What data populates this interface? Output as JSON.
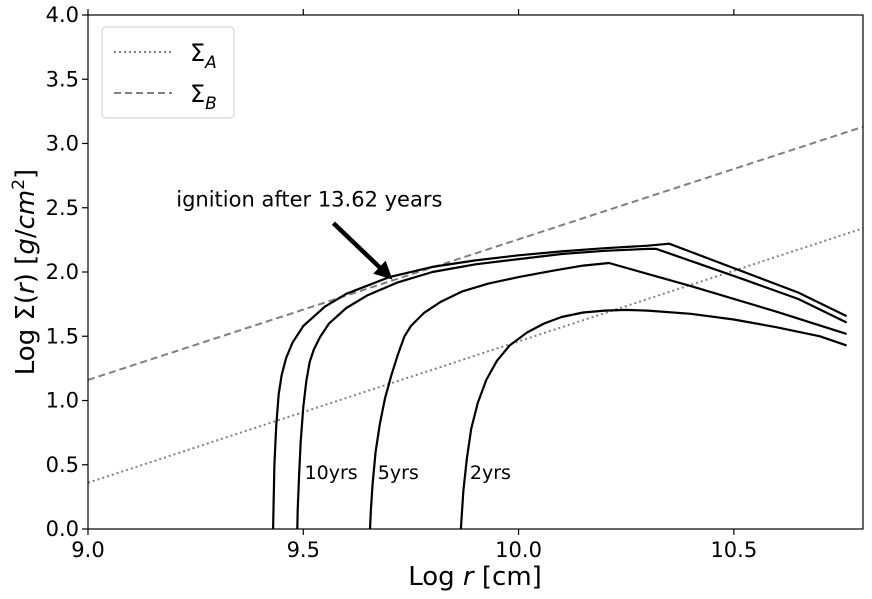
{
  "chart_data": {
    "type": "line",
    "xlabel": "Log r [cm]",
    "ylabel": "Log Σ(r) [g/cm²]",
    "xlim": [
      9.0,
      10.8
    ],
    "ylim": [
      0.0,
      4.0
    ],
    "x_ticks": [
      "9.0",
      "9.5",
      "10.0",
      "10.5"
    ],
    "x_tick_values": [
      9.0,
      9.5,
      10.0,
      10.5
    ],
    "y_ticks": [
      "0.0",
      "0.5",
      "1.0",
      "1.5",
      "2.0",
      "2.5",
      "3.0",
      "3.5",
      "4.0"
    ],
    "y_tick_values": [
      0.0,
      0.5,
      1.0,
      1.5,
      2.0,
      2.5,
      3.0,
      3.5,
      4.0
    ],
    "grid": false,
    "legend": {
      "placement": "top-left",
      "entries": [
        {
          "label": "Σ",
          "sub": "A",
          "style": "dotted",
          "color": "#808080"
        },
        {
          "label": "Σ",
          "sub": "B",
          "style": "dashed",
          "color": "#808080"
        }
      ]
    },
    "reference_lines": [
      {
        "id": "sigma-a",
        "style": "dotted",
        "color": "#808080",
        "x": [
          9.0,
          10.8
        ],
        "y": [
          0.36,
          2.34
        ]
      },
      {
        "id": "sigma-b",
        "style": "dashed",
        "color": "#808080",
        "x": [
          9.0,
          10.8
        ],
        "y": [
          1.16,
          3.13
        ]
      }
    ],
    "series": [
      {
        "label": "2yrs",
        "color": "#000000",
        "x": [
          9.866,
          9.868,
          9.872,
          9.88,
          9.89,
          9.905,
          9.925,
          9.95,
          9.98,
          10.02,
          10.06,
          10.1,
          10.15,
          10.2,
          10.25,
          10.3,
          10.4,
          10.5,
          10.6,
          10.7,
          10.76
        ],
        "y": [
          0.0,
          0.1,
          0.3,
          0.55,
          0.78,
          0.98,
          1.16,
          1.31,
          1.43,
          1.53,
          1.6,
          1.65,
          1.685,
          1.7,
          1.705,
          1.7,
          1.675,
          1.63,
          1.57,
          1.5,
          1.43
        ]
      },
      {
        "label": "5yrs",
        "color": "#000000",
        "x": [
          9.655,
          9.657,
          9.661,
          9.668,
          9.678,
          9.69,
          9.705,
          9.72,
          9.735,
          9.75,
          9.78,
          9.82,
          9.87,
          9.93,
          10.0,
          10.08,
          10.15,
          10.21,
          10.4,
          10.6,
          10.76
        ],
        "y": [
          0.0,
          0.15,
          0.35,
          0.6,
          0.82,
          1.02,
          1.2,
          1.36,
          1.5,
          1.58,
          1.68,
          1.77,
          1.85,
          1.91,
          1.96,
          2.01,
          2.05,
          2.07,
          1.89,
          1.69,
          1.52
        ]
      },
      {
        "label": "10yrs",
        "color": "#000000",
        "x": [
          9.486,
          9.487,
          9.49,
          9.494,
          9.5,
          9.507,
          9.515,
          9.525,
          9.54,
          9.56,
          9.6,
          9.65,
          9.72,
          9.8,
          9.9,
          10.0,
          10.1,
          10.2,
          10.3,
          10.32,
          10.5,
          10.65,
          10.76
        ],
        "y": [
          0.0,
          0.15,
          0.4,
          0.68,
          0.95,
          1.15,
          1.3,
          1.4,
          1.5,
          1.6,
          1.72,
          1.82,
          1.92,
          2.0,
          2.06,
          2.1,
          2.14,
          2.165,
          2.18,
          2.18,
          1.97,
          1.79,
          1.61
        ]
      },
      {
        "label": "ignition",
        "color": "#000000",
        "x": [
          9.43,
          9.431,
          9.433,
          9.437,
          9.443,
          9.45,
          9.46,
          9.475,
          9.5,
          9.55,
          9.6,
          9.7,
          9.8,
          9.9,
          10.0,
          10.1,
          10.2,
          10.3,
          10.35,
          10.5,
          10.65,
          10.76
        ],
        "y": [
          0.0,
          0.2,
          0.5,
          0.8,
          1.05,
          1.2,
          1.33,
          1.45,
          1.58,
          1.73,
          1.83,
          1.96,
          2.04,
          2.09,
          2.13,
          2.16,
          2.185,
          2.205,
          2.22,
          2.03,
          1.84,
          1.66
        ]
      }
    ],
    "annotations": [
      {
        "text": "ignition after 13.62 years",
        "x": 9.205,
        "y": 2.51
      },
      {
        "text": "10yrs",
        "x": 9.503,
        "y": 0.39
      },
      {
        "text": "5yrs",
        "x": 9.673,
        "y": 0.39
      },
      {
        "text": "2yrs",
        "x": 9.887,
        "y": 0.39
      }
    ],
    "arrow": {
      "from": [
        9.57,
        2.38
      ],
      "to": [
        9.695,
        1.98
      ]
    }
  }
}
